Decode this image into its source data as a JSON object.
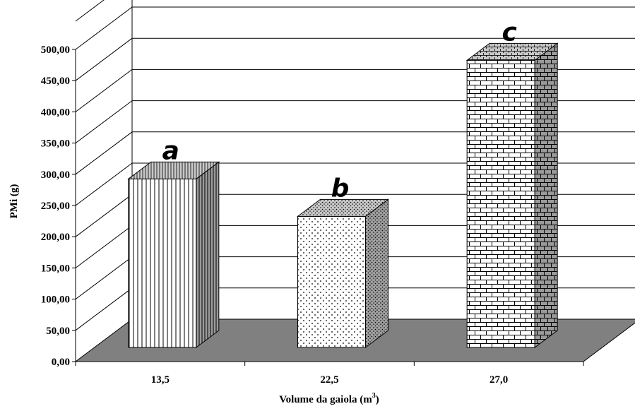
{
  "chart_data": {
    "type": "bar",
    "three_d": true,
    "title": "",
    "xlabel": "Volume da gaiola (m",
    "xlabel_sup": "3",
    "xlabel_end": ")",
    "ylabel": "PMi (g)",
    "ylim": [
      0,
      500
    ],
    "y_ticks": [
      "0,00",
      "50,00",
      "100,00",
      "150,00",
      "200,00",
      "250,00",
      "300,00",
      "350,00",
      "400,00",
      "450,00",
      "500,00"
    ],
    "categories": [
      "13,5",
      "22,5",
      "27,0"
    ],
    "values": [
      270,
      210,
      460
    ],
    "bar_letters": [
      "a",
      "b",
      "c"
    ],
    "patterns": [
      "vertical-lines",
      "dots",
      "bricks"
    ],
    "grid": true,
    "legend": "none",
    "colors": {
      "floor": "#808080",
      "bar_face": "#ffffff",
      "grid": "#000000"
    }
  }
}
